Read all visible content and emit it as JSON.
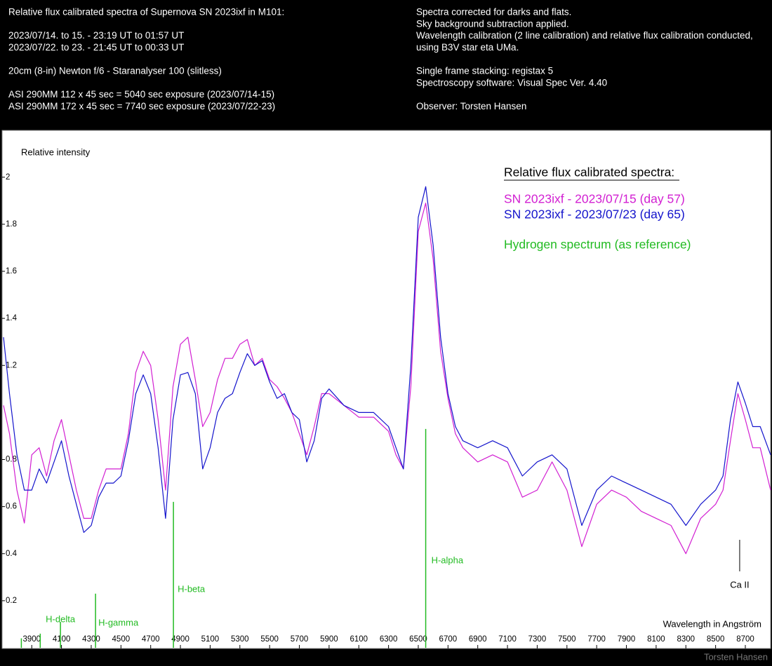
{
  "header": {
    "left": [
      "Relative flux calibrated spectra of Supernova SN 2023ixf in M101:",
      "2023/07/14. to 15. -  23:19 UT to 01:57 UT",
      "2023/07/22. to 23. -  21:45 UT to 00:33 UT",
      "20cm (8-in) Newton f/6 - Staranalyser 100 (slitless)",
      "ASI 290MM   112 x 45 sec = 5040 sec exposure (2023/07/14-15)",
      "ASI 290MM   172 x 45 sec = 7740 sec exposure (2023/07/22-23)"
    ],
    "right": [
      "Spectra corrected for darks and flats.",
      "Sky background subtraction applied.",
      "Wavelength calibration (2 line calibration) and relative flux calibration conducted,",
      "using B3V star eta UMa.",
      "Single frame stacking: registax 5",
      "Spectroscopy software: Visual Spec Ver. 4.40",
      "Observer: Torsten Hansen"
    ]
  },
  "chart_data": {
    "type": "line",
    "y_label": "Relative intensity",
    "x_label": "Wavelength in Angström",
    "legend_title": "Relative flux calibrated spectra:",
    "credit": "Torsten Hansen",
    "xlim": [
      3710,
      8870
    ],
    "ylim": [
      0,
      2.19
    ],
    "xticks": [
      3900,
      4100,
      4300,
      4500,
      4700,
      4900,
      5100,
      5300,
      5500,
      5700,
      5900,
      6100,
      6300,
      6500,
      6700,
      6900,
      7100,
      7300,
      7500,
      7700,
      7900,
      8100,
      8300,
      8500,
      8700
    ],
    "yticks": [
      0.2,
      0.4,
      0.6,
      0.8,
      1.2,
      1.4,
      1.6,
      1.8,
      2
    ],
    "x": [
      3710,
      3750,
      3800,
      3850,
      3900,
      3950,
      4000,
      4050,
      4100,
      4150,
      4200,
      4250,
      4300,
      4350,
      4400,
      4450,
      4500,
      4550,
      4600,
      4650,
      4700,
      4750,
      4800,
      4850,
      4900,
      4950,
      5000,
      5050,
      5100,
      5150,
      5200,
      5250,
      5300,
      5350,
      5400,
      5450,
      5500,
      5550,
      5600,
      5650,
      5700,
      5750,
      5800,
      5850,
      5900,
      6000,
      6100,
      6200,
      6300,
      6350,
      6400,
      6450,
      6500,
      6550,
      6600,
      6650,
      6700,
      6750,
      6800,
      6900,
      7000,
      7100,
      7200,
      7300,
      7400,
      7500,
      7600,
      7700,
      7800,
      7900,
      8000,
      8100,
      8200,
      8300,
      8400,
      8500,
      8550,
      8600,
      8650,
      8700,
      8750,
      8800,
      8870
    ],
    "series": [
      {
        "name": "SN 2023ixf - 2023/07/15 (day 57)",
        "color": "#d21fd2",
        "values": [
          1.03,
          0.91,
          0.67,
          0.53,
          0.82,
          0.85,
          0.73,
          0.88,
          0.97,
          0.82,
          0.67,
          0.55,
          0.55,
          0.67,
          0.76,
          0.76,
          0.76,
          0.91,
          1.17,
          1.26,
          1.2,
          0.97,
          0.67,
          1.11,
          1.29,
          1.32,
          1.14,
          0.94,
          1.0,
          1.14,
          1.23,
          1.23,
          1.29,
          1.31,
          1.2,
          1.23,
          1.14,
          1.11,
          1.06,
          1.0,
          0.91,
          0.82,
          0.94,
          1.08,
          1.08,
          1.03,
          0.98,
          0.98,
          0.92,
          0.82,
          0.76,
          1.11,
          1.77,
          1.89,
          1.65,
          1.26,
          1.06,
          0.91,
          0.85,
          0.79,
          0.82,
          0.79,
          0.64,
          0.67,
          0.79,
          0.67,
          0.43,
          0.61,
          0.67,
          0.64,
          0.58,
          0.55,
          0.52,
          0.4,
          0.55,
          0.61,
          0.67,
          0.88,
          1.08,
          0.97,
          0.85,
          0.85,
          0.67
        ]
      },
      {
        "name": "SN 2023ixf - 2023/07/23 (day 65)",
        "color": "#1414cc",
        "values": [
          1.32,
          1.08,
          0.82,
          0.67,
          0.67,
          0.76,
          0.7,
          0.79,
          0.88,
          0.73,
          0.61,
          0.49,
          0.52,
          0.64,
          0.7,
          0.7,
          0.73,
          0.88,
          1.08,
          1.16,
          1.08,
          0.85,
          0.55,
          0.97,
          1.16,
          1.17,
          1.08,
          0.76,
          0.85,
          1.0,
          1.06,
          1.08,
          1.17,
          1.25,
          1.2,
          1.22,
          1.13,
          1.06,
          1.08,
          1.0,
          0.97,
          0.79,
          0.88,
          1.06,
          1.1,
          1.03,
          1.0,
          1.0,
          0.94,
          0.85,
          0.76,
          1.2,
          1.83,
          1.96,
          1.71,
          1.32,
          1.08,
          0.94,
          0.88,
          0.85,
          0.88,
          0.85,
          0.73,
          0.79,
          0.82,
          0.76,
          0.52,
          0.67,
          0.73,
          0.7,
          0.67,
          0.64,
          0.61,
          0.52,
          0.61,
          0.67,
          0.73,
          0.97,
          1.13,
          1.04,
          0.94,
          0.94,
          0.82
        ]
      }
    ],
    "reference": {
      "name": "Hydrogen spectrum (as reference)",
      "color": "#22bb22",
      "x": [
        3830,
        3957,
        4093,
        4329,
        4853,
        6550
      ],
      "values": [
        0.04,
        0.06,
        0.11,
        0.23,
        0.62,
        0.93
      ],
      "labels": [
        null,
        null,
        "H-delta",
        "H-gamma",
        "H-beta",
        "H-alpha"
      ]
    },
    "annotation": {
      "text": "Ca II",
      "x": 8662
    }
  }
}
